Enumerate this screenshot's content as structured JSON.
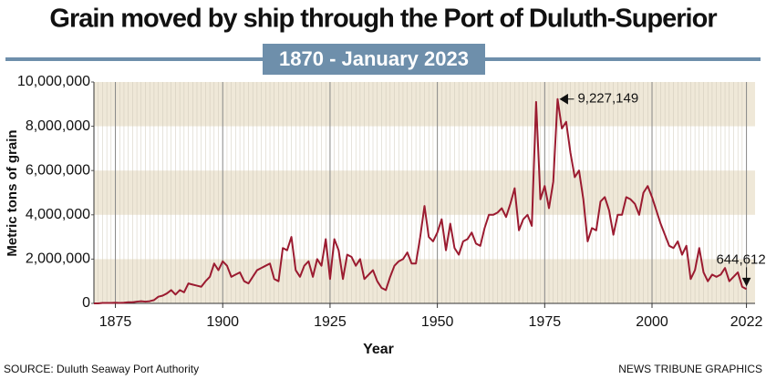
{
  "chart_data": {
    "type": "line",
    "title": "Grain moved by ship through the Port of Duluth-Superior",
    "subtitle": "1870 - January 2023",
    "y_label": "Metric tons of grain",
    "x_label": "Year",
    "source": "SOURCE: Duluth Seaway Port Authority",
    "credit": "NEWS TRIBUNE GRAPHICS",
    "xlim": [
      1870,
      2024
    ],
    "xticks": [
      1875,
      1900,
      1925,
      1950,
      1975,
      2000,
      2022
    ],
    "ylim": [
      0,
      10000000
    ],
    "yticks": [
      0,
      {
        "value": 2000000,
        "label": "2,000,000"
      },
      {
        "value": 4000000,
        "label": "4,000,000"
      },
      {
        "value": 6000000,
        "label": "6,000,000"
      },
      {
        "value": 8000000,
        "label": "8,000,000"
      },
      {
        "value": 10000000,
        "label": "10,000,000"
      }
    ],
    "grid": true,
    "x": [
      1870,
      1871,
      1872,
      1873,
      1874,
      1875,
      1876,
      1877,
      1878,
      1879,
      1880,
      1881,
      1882,
      1883,
      1884,
      1885,
      1886,
      1887,
      1888,
      1889,
      1890,
      1891,
      1892,
      1893,
      1894,
      1895,
      1896,
      1897,
      1898,
      1899,
      1900,
      1901,
      1902,
      1903,
      1904,
      1905,
      1906,
      1907,
      1908,
      1909,
      1910,
      1911,
      1912,
      1913,
      1914,
      1915,
      1916,
      1917,
      1918,
      1919,
      1920,
      1921,
      1922,
      1923,
      1924,
      1925,
      1926,
      1927,
      1928,
      1929,
      1930,
      1931,
      1932,
      1933,
      1934,
      1935,
      1936,
      1937,
      1938,
      1939,
      1940,
      1941,
      1942,
      1943,
      1944,
      1945,
      1946,
      1947,
      1948,
      1949,
      1950,
      1951,
      1952,
      1953,
      1954,
      1955,
      1956,
      1957,
      1958,
      1959,
      1960,
      1961,
      1962,
      1963,
      1964,
      1965,
      1966,
      1967,
      1968,
      1969,
      1970,
      1971,
      1972,
      1973,
      1974,
      1975,
      1976,
      1977,
      1978,
      1979,
      1980,
      1981,
      1982,
      1983,
      1984,
      1985,
      1986,
      1987,
      1988,
      1989,
      1990,
      1991,
      1992,
      1993,
      1994,
      1995,
      1996,
      1997,
      1998,
      1999,
      2000,
      2001,
      2002,
      2003,
      2004,
      2005,
      2006,
      2007,
      2008,
      2009,
      2010,
      2011,
      2012,
      2013,
      2014,
      2015,
      2016,
      2017,
      2018,
      2019,
      2020,
      2021,
      2022
    ],
    "series": [
      {
        "color": "#9b1b30",
        "values": [
          0,
          0,
          20000,
          20000,
          20000,
          30000,
          20000,
          30000,
          50000,
          50000,
          80000,
          100000,
          80000,
          100000,
          150000,
          300000,
          350000,
          450000,
          600000,
          400000,
          600000,
          500000,
          900000,
          850000,
          800000,
          750000,
          1000000,
          1200000,
          1800000,
          1500000,
          1900000,
          1700000,
          1200000,
          1300000,
          1400000,
          1000000,
          900000,
          1200000,
          1500000,
          1600000,
          1700000,
          1800000,
          1100000,
          1000000,
          2500000,
          2400000,
          3000000,
          1500000,
          1200000,
          1700000,
          1900000,
          1200000,
          2000000,
          1700000,
          2900000,
          1100000,
          2900000,
          2400000,
          1100000,
          2200000,
          2100000,
          1700000,
          2000000,
          1100000,
          1300000,
          1500000,
          1000000,
          700000,
          600000,
          1200000,
          1700000,
          1900000,
          2000000,
          2300000,
          1800000,
          1800000,
          3000000,
          4400000,
          3000000,
          2800000,
          3200000,
          3800000,
          2400000,
          3600000,
          2500000,
          2200000,
          2800000,
          2900000,
          3200000,
          2700000,
          2600000,
          3400000,
          4000000,
          4000000,
          4100000,
          4300000,
          3900000,
          4500000,
          5200000,
          3300000,
          3800000,
          4000000,
          3500000,
          9100000,
          4700000,
          5300000,
          4300000,
          5500000,
          9227149,
          7900000,
          8200000,
          6800000,
          5700000,
          6000000,
          4700000,
          2800000,
          3400000,
          3300000,
          4600000,
          4800000,
          4200000,
          3100000,
          4000000,
          4000000,
          4800000,
          4700000,
          4500000,
          4000000,
          5000000,
          5300000,
          4800000,
          4200000,
          3600000,
          3100000,
          2600000,
          2500000,
          2800000,
          2200000,
          2600000,
          1100000,
          1500000,
          2500000,
          1400000,
          1000000,
          1300000,
          1200000,
          1300000,
          1600000,
          1000000,
          1200000,
          1400000,
          750000,
          644612
        ],
        "value_labels": [
          null,
          null,
          null,
          null,
          null,
          null,
          null,
          null,
          null,
          null,
          null,
          null,
          null,
          null,
          null,
          null,
          null,
          null,
          null,
          null,
          null,
          null,
          null,
          null,
          null,
          null,
          null,
          null,
          null,
          null,
          null,
          null,
          null,
          null,
          null,
          null,
          null,
          null,
          null,
          null,
          null,
          null,
          null,
          null,
          null,
          null,
          null,
          null,
          null,
          null,
          null,
          null,
          null,
          null,
          null,
          null,
          null,
          null,
          null,
          null,
          null,
          null,
          null,
          null,
          null,
          null,
          null,
          null,
          null,
          null,
          null,
          null,
          null,
          null,
          null,
          null,
          null,
          null,
          null,
          null,
          null,
          null,
          null,
          null,
          null,
          null,
          null,
          null,
          null,
          null,
          null,
          null,
          null,
          null,
          null,
          null,
          null,
          null,
          null,
          null,
          null,
          null,
          null,
          null,
          null,
          null,
          null,
          null,
          "9,227,149",
          null,
          null,
          null,
          null,
          null,
          null,
          null,
          null,
          null,
          null,
          null,
          null,
          null,
          null,
          null,
          null,
          null,
          null,
          null,
          null,
          null,
          null,
          null,
          null,
          null,
          null,
          null,
          null,
          null,
          null,
          null,
          null,
          null,
          null,
          null,
          null,
          null,
          null,
          null,
          null,
          null,
          null,
          null,
          "644,612"
        ]
      }
    ]
  }
}
